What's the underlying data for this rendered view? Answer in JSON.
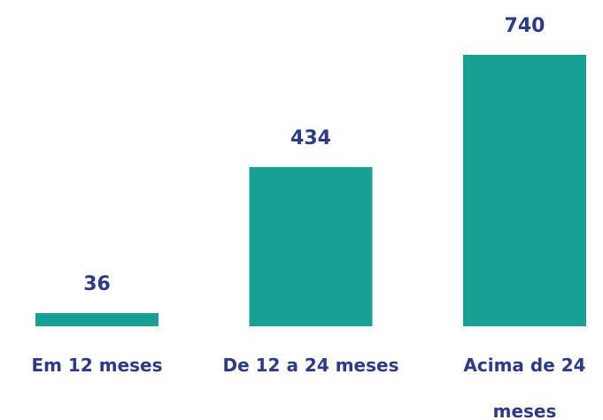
{
  "chart_data": {
    "type": "bar",
    "categories": [
      "Em 12 meses",
      "De 12 a 24 meses",
      "Acima de 24 meses"
    ],
    "values": [
      36,
      434,
      740
    ],
    "color": "#17a094"
  }
}
